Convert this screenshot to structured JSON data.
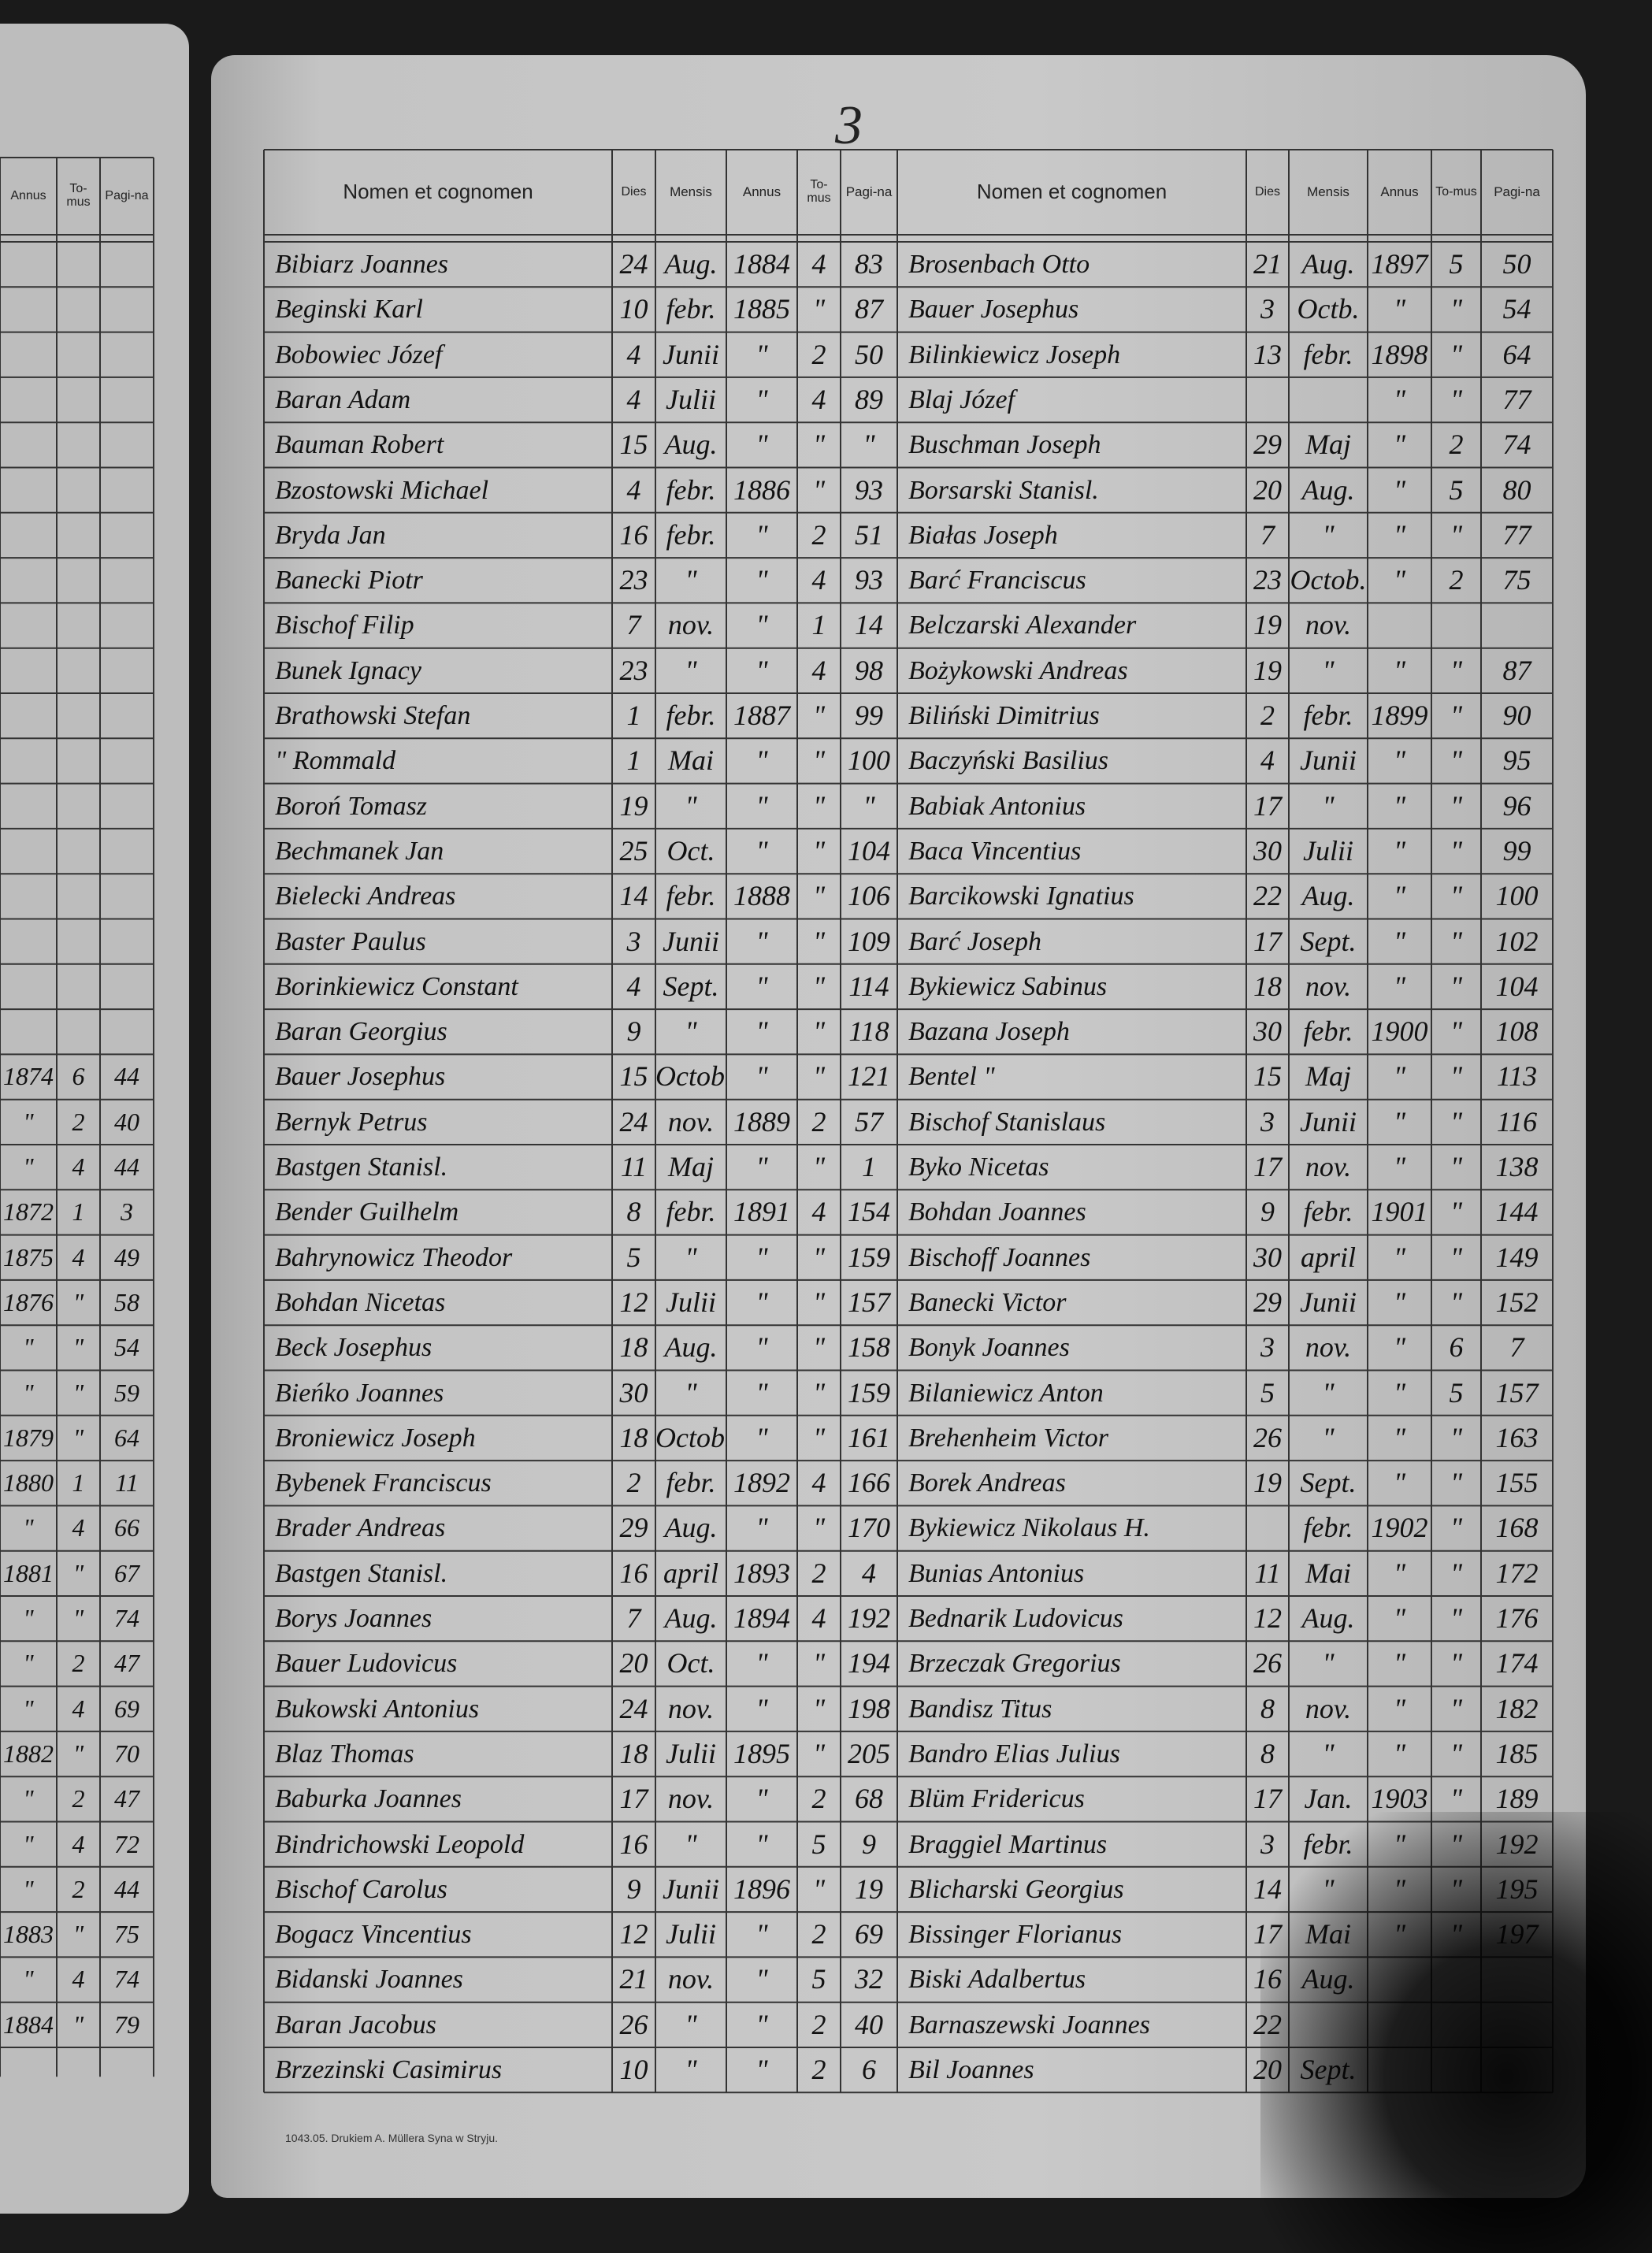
{
  "page_number": "3",
  "header": {
    "columns": [
      "Nomen et cognomen",
      "Dies",
      "Mensis",
      "Annus",
      "To-mus",
      "Pagi-na"
    ]
  },
  "left_page": {
    "rows": [
      [
        "1874",
        "6",
        "44"
      ],
      [
        "\"",
        "2",
        "40"
      ],
      [
        "\"",
        "4",
        "44"
      ],
      [
        "1872",
        "1",
        "3"
      ],
      [
        "1875",
        "4",
        "49"
      ],
      [
        "1876",
        "\"",
        "58"
      ],
      [
        "\"",
        "\"",
        "54"
      ],
      [
        "\"",
        "\"",
        "59"
      ],
      [
        "1879",
        "\"",
        "64"
      ],
      [
        "1880",
        "1",
        "11"
      ],
      [
        "\"",
        "4",
        "66"
      ],
      [
        "1881",
        "\"",
        "67"
      ],
      [
        "\"",
        "\"",
        "74"
      ],
      [
        "\"",
        "2",
        "47"
      ],
      [
        "\"",
        "4",
        "69"
      ],
      [
        "1882",
        "\"",
        "70"
      ],
      [
        "\"",
        "2",
        "47"
      ],
      [
        "\"",
        "4",
        "72"
      ],
      [
        "\"",
        "2",
        "44"
      ],
      [
        "1883",
        "\"",
        "75"
      ],
      [
        "\"",
        "4",
        "74"
      ],
      [
        "1884",
        "\"",
        "79"
      ]
    ]
  },
  "register": {
    "left": [
      [
        "Bibiarz Joannes",
        "24",
        "Aug.",
        "1884",
        "4",
        "83"
      ],
      [
        "Beginski Karl",
        "10",
        "febr.",
        "1885",
        "\"",
        "87"
      ],
      [
        "Bobowiec Józef",
        "4",
        "Junii",
        "\"",
        "2",
        "50"
      ],
      [
        "Baran Adam",
        "4",
        "Julii",
        "\"",
        "4",
        "89"
      ],
      [
        "Bauman Robert",
        "15",
        "Aug.",
        "\"",
        "\"",
        "\""
      ],
      [
        "Bzostowski Michael",
        "4",
        "febr.",
        "1886",
        "\"",
        "93"
      ],
      [
        "Bryda Jan",
        "16",
        "febr.",
        "\"",
        "2",
        "51"
      ],
      [
        "Banecki Piotr",
        "23",
        "\"",
        "\"",
        "4",
        "93"
      ],
      [
        "Bischof Filip",
        "7",
        "nov.",
        "\"",
        "1",
        "14"
      ],
      [
        "Bunek Ignacy",
        "23",
        "\"",
        "\"",
        "4",
        "98"
      ],
      [
        "Brathowski Stefan",
        "1",
        "febr.",
        "1887",
        "\"",
        "99"
      ],
      [
        "\"   Rommald",
        "1",
        "Mai",
        "\"",
        "\"",
        "100"
      ],
      [
        "Boroń Tomasz",
        "19",
        "\"",
        "\"",
        "\"",
        "\""
      ],
      [
        "Bechmanek Jan",
        "25",
        "Oct.",
        "\"",
        "\"",
        "104"
      ],
      [
        "Bielecki Andreas",
        "14",
        "febr.",
        "1888",
        "\"",
        "106"
      ],
      [
        "Baster Paulus",
        "3",
        "Junii",
        "\"",
        "\"",
        "109"
      ],
      [
        "Borinkiewicz Constant",
        "4",
        "Sept.",
        "\"",
        "\"",
        "114"
      ],
      [
        "Baran Georgius",
        "9",
        "\"",
        "\"",
        "\"",
        "118"
      ],
      [
        "Bauer Josephus",
        "15",
        "Octob.",
        "\"",
        "\"",
        "121"
      ],
      [
        "Bernyk Petrus",
        "24",
        "nov.",
        "1889",
        "2",
        "57"
      ],
      [
        "Bastgen Stanisl.",
        "11",
        "Maj",
        "\"",
        "\"",
        "1"
      ],
      [
        "Bender Guilhelm",
        "8",
        "febr.",
        "1891",
        "4",
        "154"
      ],
      [
        "Bahrynowicz Theodor",
        "5",
        "\"",
        "\"",
        "\"",
        "159"
      ],
      [
        "Bohdan Nicetas",
        "12",
        "Julii",
        "\"",
        "\"",
        "157"
      ],
      [
        "Beck Josephus",
        "18",
        "Aug.",
        "\"",
        "\"",
        "158"
      ],
      [
        "Bieńko Joannes",
        "30",
        "\"",
        "\"",
        "\"",
        "159"
      ],
      [
        "Broniewicz Joseph",
        "18",
        "Octob.",
        "\"",
        "\"",
        "161"
      ],
      [
        "Bybenek Franciscus",
        "2",
        "febr.",
        "1892",
        "4",
        "166"
      ],
      [
        "Brader Andreas",
        "29",
        "Aug.",
        "\"",
        "\"",
        "170"
      ],
      [
        "Bastgen Stanisl.",
        "16",
        "april",
        "1893",
        "2",
        "4"
      ],
      [
        "Borys Joannes",
        "7",
        "Aug.",
        "1894",
        "4",
        "192"
      ],
      [
        "Bauer Ludovicus",
        "20",
        "Oct.",
        "\"",
        "\"",
        "194"
      ],
      [
        "Bukowski Antonius",
        "24",
        "nov.",
        "\"",
        "\"",
        "198"
      ],
      [
        "Blaz Thomas",
        "18",
        "Julii",
        "1895",
        "\"",
        "205"
      ],
      [
        "Baburka Joannes",
        "17",
        "nov.",
        "\"",
        "2",
        "68"
      ],
      [
        "Bindrichowski Leopold",
        "16",
        "\"",
        "\"",
        "5",
        "9"
      ],
      [
        "Bischof Carolus",
        "9",
        "Junii",
        "1896",
        "\"",
        "19"
      ],
      [
        "Bogacz Vincentius",
        "12",
        "Julii",
        "\"",
        "2",
        "69"
      ],
      [
        "Bidanski Joannes",
        "21",
        "nov.",
        "\"",
        "5",
        "32"
      ],
      [
        "Baran Jacobus",
        "26",
        "\"",
        "\"",
        "2",
        "40"
      ],
      [
        "Brzezinski Casimirus",
        "10",
        "\"",
        "\"",
        "2",
        "6"
      ]
    ],
    "right": [
      [
        "Brosenbach Otto",
        "21",
        "Aug.",
        "1897",
        "5",
        "50"
      ],
      [
        "Bauer Josephus",
        "3",
        "Octb.",
        "\"",
        "\"",
        "54"
      ],
      [
        "Bilinkiewicz Joseph",
        "13",
        "febr.",
        "1898",
        "\"",
        "64"
      ],
      [
        "Blaj Józef",
        null,
        null,
        "\"",
        "\"",
        "77"
      ],
      [
        "Buschman Joseph",
        "29",
        "Maj",
        "\"",
        "2",
        "74"
      ],
      [
        "Borsarski Stanisl.",
        "20",
        "Aug.",
        "\"",
        "5",
        "80"
      ],
      [
        "Białas Joseph",
        "7",
        "\"",
        "\"",
        "\"",
        "77"
      ],
      [
        "Barć Franciscus",
        "23",
        "Octob.",
        "\"",
        "2",
        "75"
      ],
      [
        "Belczarski Alexander",
        "19",
        "nov.",
        null,
        null,
        null
      ],
      [
        "Bożykowski Andreas",
        "19",
        "\"",
        "\"",
        "\"",
        "87"
      ],
      [
        "Biliński Dimitrius",
        "2",
        "febr.",
        "1899",
        "\"",
        "90"
      ],
      [
        "Baczyński Basilius",
        "4",
        "Junii",
        "\"",
        "\"",
        "95"
      ],
      [
        "Babiak Antonius",
        "17",
        "\"",
        "\"",
        "\"",
        "96"
      ],
      [
        "Baca Vincentius",
        "30",
        "Julii",
        "\"",
        "\"",
        "99"
      ],
      [
        "Barcikowski Ignatius",
        "22",
        "Aug.",
        "\"",
        "\"",
        "100"
      ],
      [
        "Barć Joseph",
        "17",
        "Sept.",
        "\"",
        "\"",
        "102"
      ],
      [
        "Bykiewicz Sabinus",
        "18",
        "nov.",
        "\"",
        "\"",
        "104"
      ],
      [
        "Bazana Joseph",
        "30",
        "febr.",
        "1900",
        "\"",
        "108"
      ],
      [
        "Bentel   \"",
        "15",
        "Maj",
        "\"",
        "\"",
        "113"
      ],
      [
        "Bischof Stanislaus",
        "3",
        "Junii",
        "\"",
        "\"",
        "116"
      ],
      [
        "Byko Nicetas",
        "17",
        "nov.",
        "\"",
        "\"",
        "138"
      ],
      [
        "Bohdan Joannes",
        "9",
        "febr.",
        "1901",
        "\"",
        "144"
      ],
      [
        "Bischoff Joannes",
        "30",
        "april",
        "\"",
        "\"",
        "149"
      ],
      [
        "Banecki Victor",
        "29",
        "Junii",
        "\"",
        "\"",
        "152"
      ],
      [
        "Bonyk Joannes",
        "3",
        "nov.",
        "\"",
        "6",
        "7"
      ],
      [
        "Bilaniewicz Anton",
        "5",
        "\"",
        "\"",
        "5",
        "157"
      ],
      [
        "Brehenheim Victor",
        "26",
        "\"",
        "\"",
        "\"",
        "163"
      ],
      [
        "Borek Andreas",
        "19",
        "Sept.",
        "\"",
        "\"",
        "155"
      ],
      [
        "Bykiewicz Nikolaus H.",
        null,
        "febr.",
        "1902",
        "\"",
        "168"
      ],
      [
        "Bunias Antonius",
        "11",
        "Mai",
        "\"",
        "\"",
        "172"
      ],
      [
        "Bednarik Ludovicus",
        "12",
        "Aug.",
        "\"",
        "\"",
        "176"
      ],
      [
        "Brzeczak Gregorius",
        "26",
        "\"",
        "\"",
        "\"",
        "174"
      ],
      [
        "Bandisz Titus",
        "8",
        "nov.",
        "\"",
        "\"",
        "182"
      ],
      [
        "Bandro Elias Julius",
        "8",
        "\"",
        "\"",
        "\"",
        "185"
      ],
      [
        "Blüm Fridericus",
        "17",
        "Jan.",
        "1903",
        "\"",
        "189"
      ],
      [
        "Braggiel Martinus",
        "3",
        "febr.",
        "\"",
        "\"",
        "192"
      ],
      [
        "Blicharski Georgius",
        "14",
        "\"",
        "\"",
        "\"",
        "195"
      ],
      [
        "Bissinger Florianus",
        "17",
        "Mai",
        "\"",
        "\"",
        "197"
      ],
      [
        "Biski Adalbertus",
        "16",
        "Aug.",
        null,
        null,
        null
      ],
      [
        "Barnaszewski Joannes",
        "22",
        null,
        null,
        null,
        null
      ],
      [
        "Bil Joannes",
        "20",
        "Sept.",
        null,
        null,
        null
      ]
    ]
  },
  "footer": "1043.05. Drukiem A. Müllera Syna w Stryju."
}
